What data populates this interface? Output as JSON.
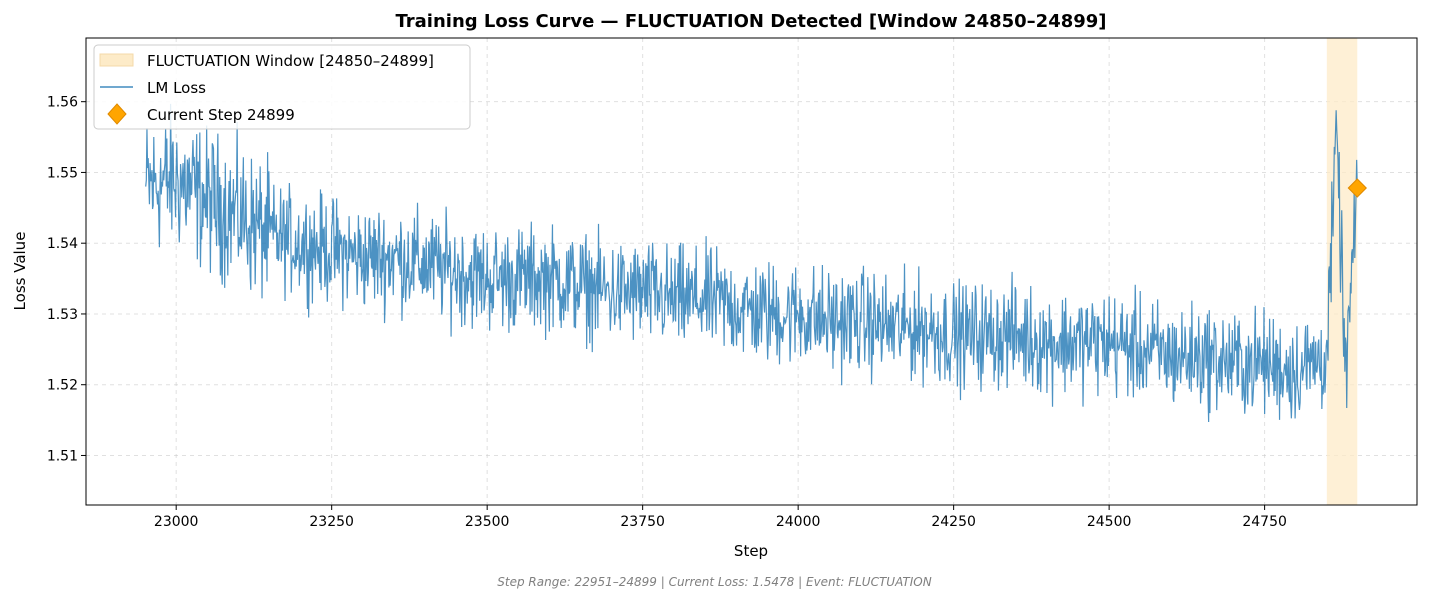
{
  "chart_data": {
    "type": "line",
    "title": "Training Loss Curve — FLUCTUATION Detected [Window 24850–24899]",
    "xlabel": "Step",
    "ylabel": "Loss Value",
    "xlim": [
      22855,
      24995
    ],
    "ylim": [
      1.503,
      1.569
    ],
    "xticks": [
      23000,
      23250,
      23500,
      23750,
      24000,
      24250,
      24500,
      24750
    ],
    "yticks": [
      1.51,
      1.52,
      1.53,
      1.54,
      1.55,
      1.56
    ],
    "xtick_labels": [
      "23000",
      "23250",
      "23500",
      "23750",
      "24000",
      "24250",
      "24500",
      "24750"
    ],
    "ytick_labels": [
      "1.51",
      "1.52",
      "1.53",
      "1.54",
      "1.55",
      "1.56"
    ],
    "grid": true,
    "legend_position": "upper-left",
    "series": [
      {
        "name": "LM Loss",
        "color": "#1f77b4",
        "x": [
          22951,
          23000,
          23050,
          23100,
          23150,
          23200,
          23250,
          23300,
          23350,
          23400,
          23450,
          23500,
          23550,
          23600,
          23650,
          23700,
          23750,
          23800,
          23850,
          23900,
          23950,
          24000,
          24050,
          24100,
          24150,
          24200,
          24250,
          24300,
          24350,
          24400,
          24450,
          24500,
          24550,
          24600,
          24650,
          24700,
          24750,
          24800,
          24850,
          24866,
          24880,
          24899
        ],
        "y": [
          1.548,
          1.549,
          1.546,
          1.544,
          1.541,
          1.54,
          1.539,
          1.538,
          1.538,
          1.537,
          1.536,
          1.535,
          1.535,
          1.535,
          1.534,
          1.533,
          1.533,
          1.532,
          1.532,
          1.531,
          1.53,
          1.53,
          1.529,
          1.529,
          1.528,
          1.528,
          1.527,
          1.527,
          1.527,
          1.526,
          1.526,
          1.526,
          1.525,
          1.524,
          1.524,
          1.523,
          1.523,
          1.522,
          1.524,
          1.556,
          1.521,
          1.5478
        ],
        "fluctuation_amplitude": 0.0045
      }
    ],
    "highlight_window": {
      "label": "FLUCTUATION Window [24850–24899]",
      "x_start": 24850,
      "x_end": 24899,
      "color": "#fdebc8"
    },
    "current_point": {
      "label": "Current Step 24899",
      "x": 24899,
      "y": 1.5478,
      "color": "#ffa500"
    }
  },
  "footer": {
    "text": "Step Range: 22951–24899 | Current Loss: 1.5478 | Event: FLUCTUATION"
  }
}
